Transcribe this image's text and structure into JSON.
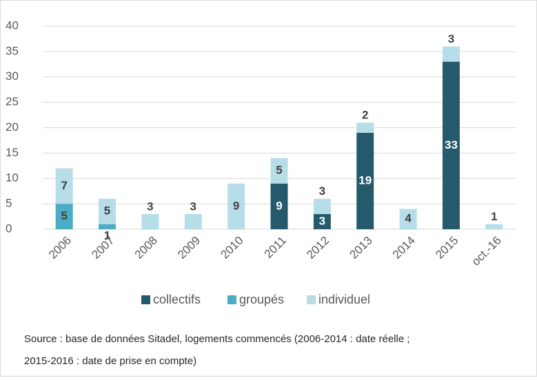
{
  "chart_data": {
    "type": "stacked_bar",
    "categories": [
      "2006",
      "2007",
      "2008",
      "2009",
      "2010",
      "2011",
      "2012",
      "2013",
      "2014",
      "2015",
      "oct.-16"
    ],
    "series": [
      {
        "name": "collectifs",
        "color": "#245a6b",
        "label_color": "#ffffff",
        "values": [
          0,
          0,
          0,
          0,
          0,
          9,
          3,
          19,
          0,
          33,
          0
        ]
      },
      {
        "name": "groupés",
        "color": "#4bacc6",
        "label_color": "#404040",
        "values": [
          5,
          1,
          0,
          0,
          0,
          0,
          0,
          0,
          0,
          0,
          0
        ]
      },
      {
        "name": "individuel",
        "color": "#b7dde8",
        "label_color": "#404040",
        "values": [
          7,
          5,
          3,
          3,
          9,
          5,
          3,
          2,
          4,
          3,
          1
        ]
      }
    ],
    "ylim": [
      0,
      40
    ],
    "yticks": [
      0,
      5,
      10,
      15,
      20,
      25,
      30,
      35,
      40
    ],
    "grid": true,
    "legend": "bottom",
    "source": [
      "Source : base de données Sitadel, logements commencés (2006-2014 : date réelle ;",
      "2015-2016 : date de prise en compte)"
    ]
  }
}
